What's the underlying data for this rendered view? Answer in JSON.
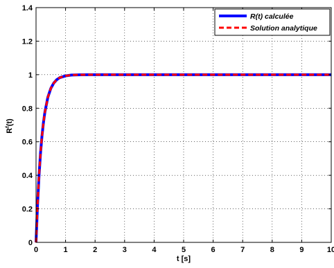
{
  "chart_data": {
    "type": "line",
    "title": "",
    "xlabel": "t [s]",
    "ylabel_base": "R",
    "ylabel_sup": "f",
    "ylabel_tail": "(t)",
    "xlim": [
      0,
      10
    ],
    "ylim": [
      0,
      1.4
    ],
    "xticks": [
      0,
      1,
      2,
      3,
      4,
      5,
      6,
      7,
      8,
      9,
      10
    ],
    "yticks": [
      0,
      0.2,
      0.4,
      0.6,
      0.8,
      1,
      1.2,
      1.4
    ],
    "xtick_labels": [
      "0",
      "1",
      "2",
      "3",
      "4",
      "5",
      "6",
      "7",
      "8",
      "9",
      "10"
    ],
    "ytick_labels": [
      "0",
      "0.2",
      "0.4",
      "0.6",
      "0.8",
      "1",
      "1.2",
      "1.4"
    ],
    "grid": true,
    "legend_position": "top-right",
    "series": [
      {
        "name": "R(t) calculée",
        "color": "#0000ff",
        "style": "solid",
        "x": [
          0,
          0.05,
          0.1,
          0.15,
          0.2,
          0.25,
          0.3,
          0.4,
          0.5,
          0.6,
          0.7,
          0.8,
          1,
          1.2,
          1.5,
          2,
          3,
          4,
          5,
          6,
          7,
          8,
          9,
          10
        ],
        "values": [
          0,
          0.221,
          0.393,
          0.528,
          0.632,
          0.713,
          0.777,
          0.865,
          0.918,
          0.95,
          0.97,
          0.982,
          0.993,
          0.998,
          0.9994,
          1,
          1,
          1,
          1,
          1,
          1,
          1,
          1,
          1
        ]
      },
      {
        "name": "Solution analytique",
        "color": "#ff0000",
        "style": "dashed",
        "x": [
          0,
          0.05,
          0.1,
          0.15,
          0.2,
          0.25,
          0.3,
          0.4,
          0.5,
          0.6,
          0.7,
          0.8,
          1,
          1.2,
          1.5,
          2,
          3,
          4,
          5,
          6,
          7,
          8,
          9,
          10
        ],
        "values": [
          0,
          0.221,
          0.393,
          0.528,
          0.632,
          0.713,
          0.777,
          0.865,
          0.918,
          0.95,
          0.97,
          0.982,
          0.993,
          0.998,
          0.9994,
          1,
          1,
          1,
          1,
          1,
          1,
          1,
          1,
          1
        ]
      }
    ]
  }
}
